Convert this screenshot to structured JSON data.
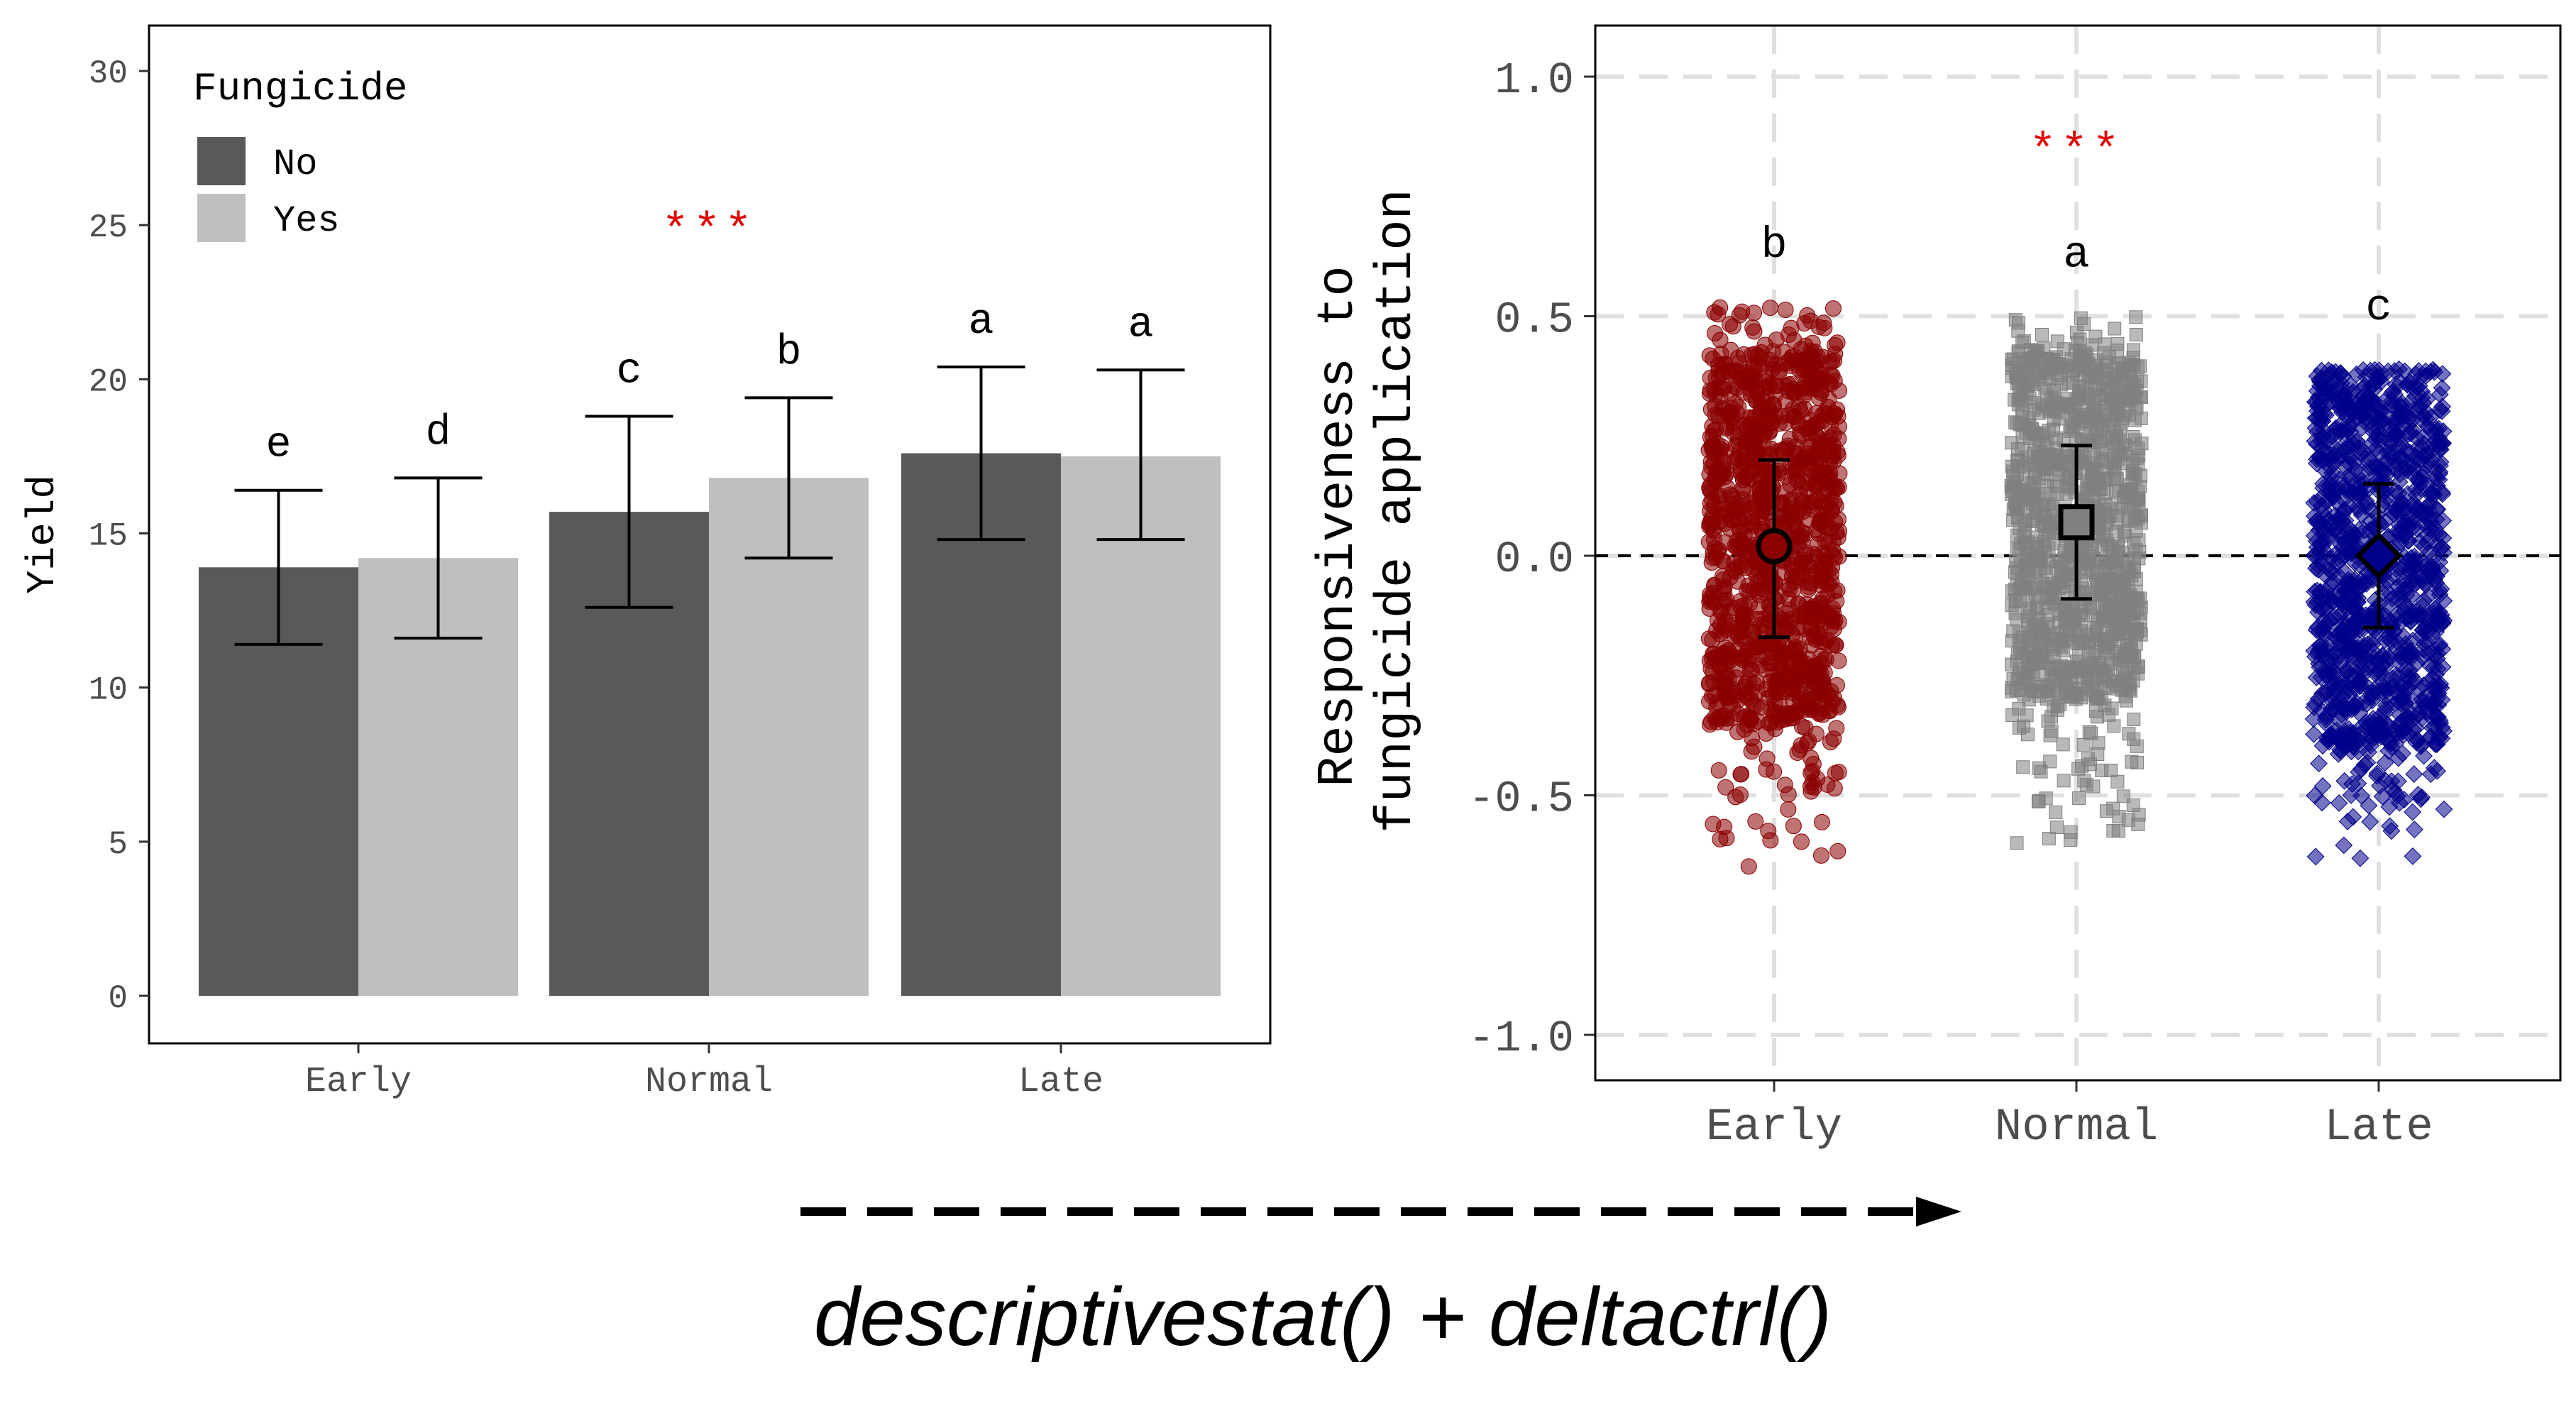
{
  "chart_data": [
    {
      "type": "bar",
      "ylabel": "Yield",
      "ylim": [
        0,
        30
      ],
      "yticks": [
        0,
        5,
        10,
        15,
        20,
        25,
        30
      ],
      "categories": [
        "Early",
        "Normal",
        "Late"
      ],
      "legend": {
        "title": "Fungicide",
        "position": "top-left",
        "entries": [
          {
            "label": "No",
            "color": "#595959"
          },
          {
            "label": "Yes",
            "color": "#bfbfbf"
          }
        ]
      },
      "series": [
        {
          "name": "No",
          "color": "#595959",
          "values": [
            13.9,
            15.7,
            17.6
          ],
          "lower": [
            11.4,
            12.6,
            14.8
          ],
          "upper": [
            16.4,
            18.8,
            20.4
          ],
          "letters": [
            "e",
            "c",
            "a"
          ]
        },
        {
          "name": "Yes",
          "color": "#bfbfbf",
          "values": [
            14.2,
            16.8,
            17.5
          ],
          "lower": [
            11.6,
            14.2,
            14.8
          ],
          "upper": [
            16.8,
            19.4,
            20.3
          ],
          "letters": [
            "d",
            "b",
            "a"
          ]
        }
      ],
      "significance": {
        "text": "***",
        "color": "#e00000",
        "y": 25.1,
        "category": "Normal"
      },
      "grid": false
    },
    {
      "type": "scatter",
      "ylabel": "Responsiveness to\nfungicide application",
      "ylim": [
        -1.1,
        1.1
      ],
      "yticks": [
        "-1.0",
        "-0.5",
        "0.0",
        "0.5",
        "1.0"
      ],
      "categories": [
        "Early",
        "Normal",
        "Late"
      ],
      "reference_line": 0,
      "grid": true,
      "groups": [
        {
          "name": "Early",
          "color": "#8b0000",
          "marker": "circle",
          "mean": 0.02,
          "lower": -0.17,
          "upper": 0.2,
          "letter": "b",
          "cloud_min": -0.66,
          "cloud_max": 0.52,
          "core_min": -0.35,
          "core_max": 0.43
        },
        {
          "name": "Normal",
          "color": "#808080",
          "marker": "square",
          "mean": 0.07,
          "lower": -0.09,
          "upper": 0.23,
          "letter": "a",
          "cloud_min": -0.63,
          "cloud_max": 0.5,
          "core_min": -0.3,
          "core_max": 0.43
        },
        {
          "name": "Late",
          "color": "#00008b",
          "marker": "diamond",
          "mean": 0.0,
          "lower": -0.15,
          "upper": 0.15,
          "letter": "c",
          "cloud_min": -0.65,
          "cloud_max": 0.39,
          "core_min": -0.4,
          "core_max": 0.37
        }
      ],
      "significance": {
        "text": "***",
        "color": "#e00000",
        "y": 0.86,
        "category": "Normal"
      }
    }
  ],
  "footer": {
    "caption": "descriptivestat() + deltactrl()"
  }
}
